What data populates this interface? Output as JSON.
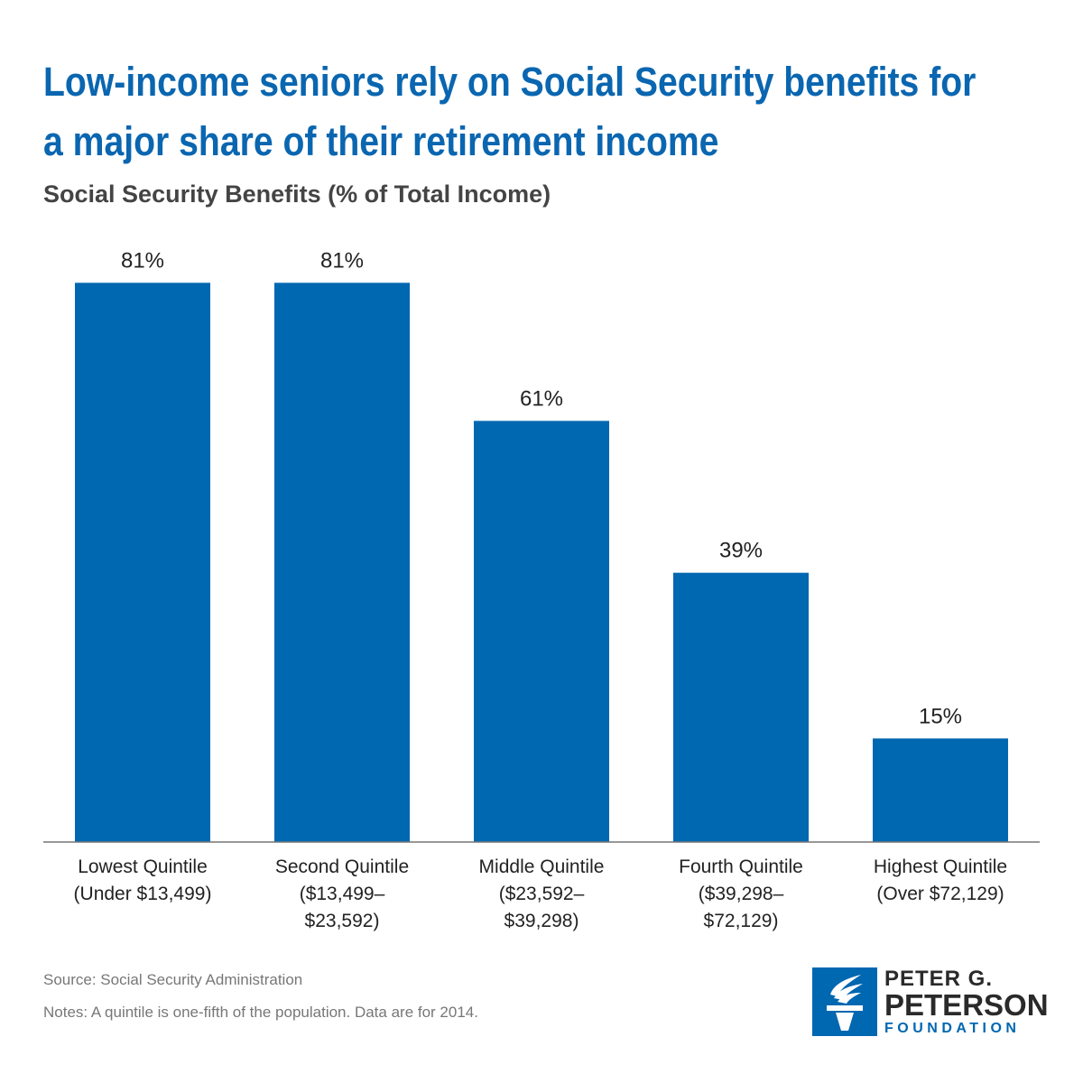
{
  "header": {
    "title_line1": "Low-income seniors rely on Social Security benefits for",
    "title_line2": "a major share of their retirement income",
    "subtitle": "Social Security Benefits (% of Total Income)"
  },
  "chart_data": {
    "type": "bar",
    "title": "Low-income seniors rely on Social Security benefits for a major share of their retirement income",
    "subtitle": "Social Security Benefits (% of Total Income)",
    "categories": [
      [
        "Lowest Quintile",
        "(Under $13,499)"
      ],
      [
        "Second Quintile",
        "($13,499–",
        "$23,592)"
      ],
      [
        "Middle Quintile",
        "($23,592–",
        "$39,298)"
      ],
      [
        "Fourth Quintile",
        "($39,298–",
        "$72,129)"
      ],
      [
        "Highest Quintile",
        "(Over $72,129)"
      ]
    ],
    "values": [
      81,
      81,
      61,
      39,
      15
    ],
    "value_labels": [
      "81%",
      "81%",
      "61%",
      "39%",
      "15%"
    ],
    "ylim": [
      0,
      100
    ],
    "grid": false,
    "legend": "none",
    "bar_color": "#0067b1"
  },
  "footer": {
    "source": "Source: Social Security Administration",
    "notes": "Notes: A quintile is one-fifth of the population. Data are for 2014."
  },
  "logo": {
    "line1": "PETER G.",
    "line2": "PETERSON",
    "line3": "FOUNDATION",
    "icon": "torch-icon"
  },
  "colors": {
    "title": "#0a66b0",
    "bar": "#0067b1",
    "subtitle": "#444444",
    "footnote": "#777777"
  }
}
